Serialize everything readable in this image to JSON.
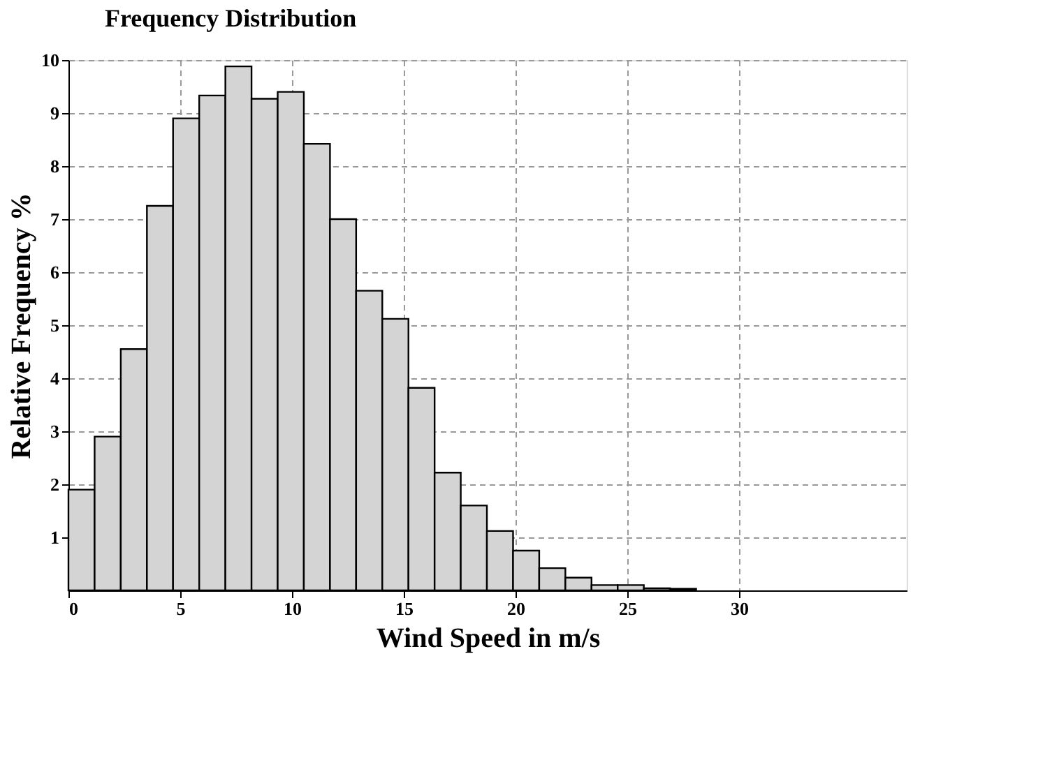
{
  "chart_data": {
    "type": "histogram",
    "title": "Frequency Distribution",
    "xlabel": "Wind Speed in m/s",
    "ylabel": "Relative Frequency %",
    "bins": [
      0,
      1.17,
      2.34,
      3.51,
      4.68,
      5.85,
      7.02,
      8.19,
      9.36,
      10.53,
      11.7,
      12.87,
      14.04,
      15.21,
      16.38,
      17.55,
      18.72,
      19.89,
      21.06,
      22.23,
      23.4,
      24.57,
      25.74,
      26.91,
      28.08
    ],
    "values": [
      1.9,
      2.9,
      4.55,
      7.25,
      8.9,
      9.33,
      9.88,
      9.27,
      9.4,
      8.42,
      7.0,
      5.65,
      5.12,
      3.82,
      2.22,
      1.6,
      1.12,
      0.75,
      0.42,
      0.24,
      0.1,
      0.1,
      0.04,
      0.03
    ],
    "color": "#d4d4d4",
    "xlim": [
      0,
      37.5
    ],
    "xticks": [
      0,
      5,
      10,
      15,
      20,
      25,
      30
    ],
    "ylim": [
      0,
      10
    ],
    "yticks": [
      1,
      2,
      3,
      4,
      5,
      6,
      7,
      8,
      9,
      10
    ],
    "grid": true
  }
}
